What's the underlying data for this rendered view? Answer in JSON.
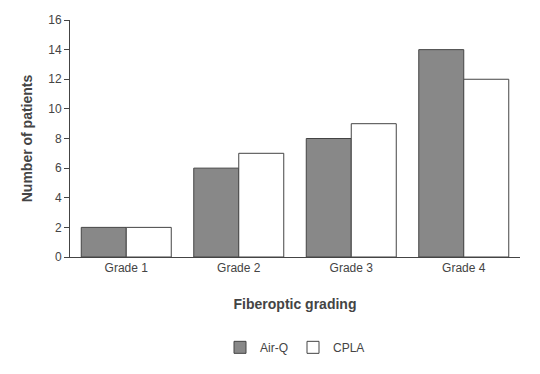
{
  "chart_data": {
    "type": "bar",
    "categories": [
      "Grade 1",
      "Grade 2",
      "Grade 3",
      "Grade 4"
    ],
    "series": [
      {
        "name": "Air-Q",
        "color": "#888888",
        "values": [
          2,
          6,
          8,
          14
        ]
      },
      {
        "name": "CPLA",
        "color": "#ffffff",
        "values": [
          2,
          7,
          9,
          12
        ]
      }
    ],
    "xlabel": "Fiberoptic grading",
    "ylabel": "Number of patients",
    "ylim": [
      0,
      16
    ],
    "yticks": [
      0,
      2,
      4,
      6,
      8,
      10,
      12,
      14,
      16
    ],
    "grid": false,
    "legend": "bottom"
  }
}
